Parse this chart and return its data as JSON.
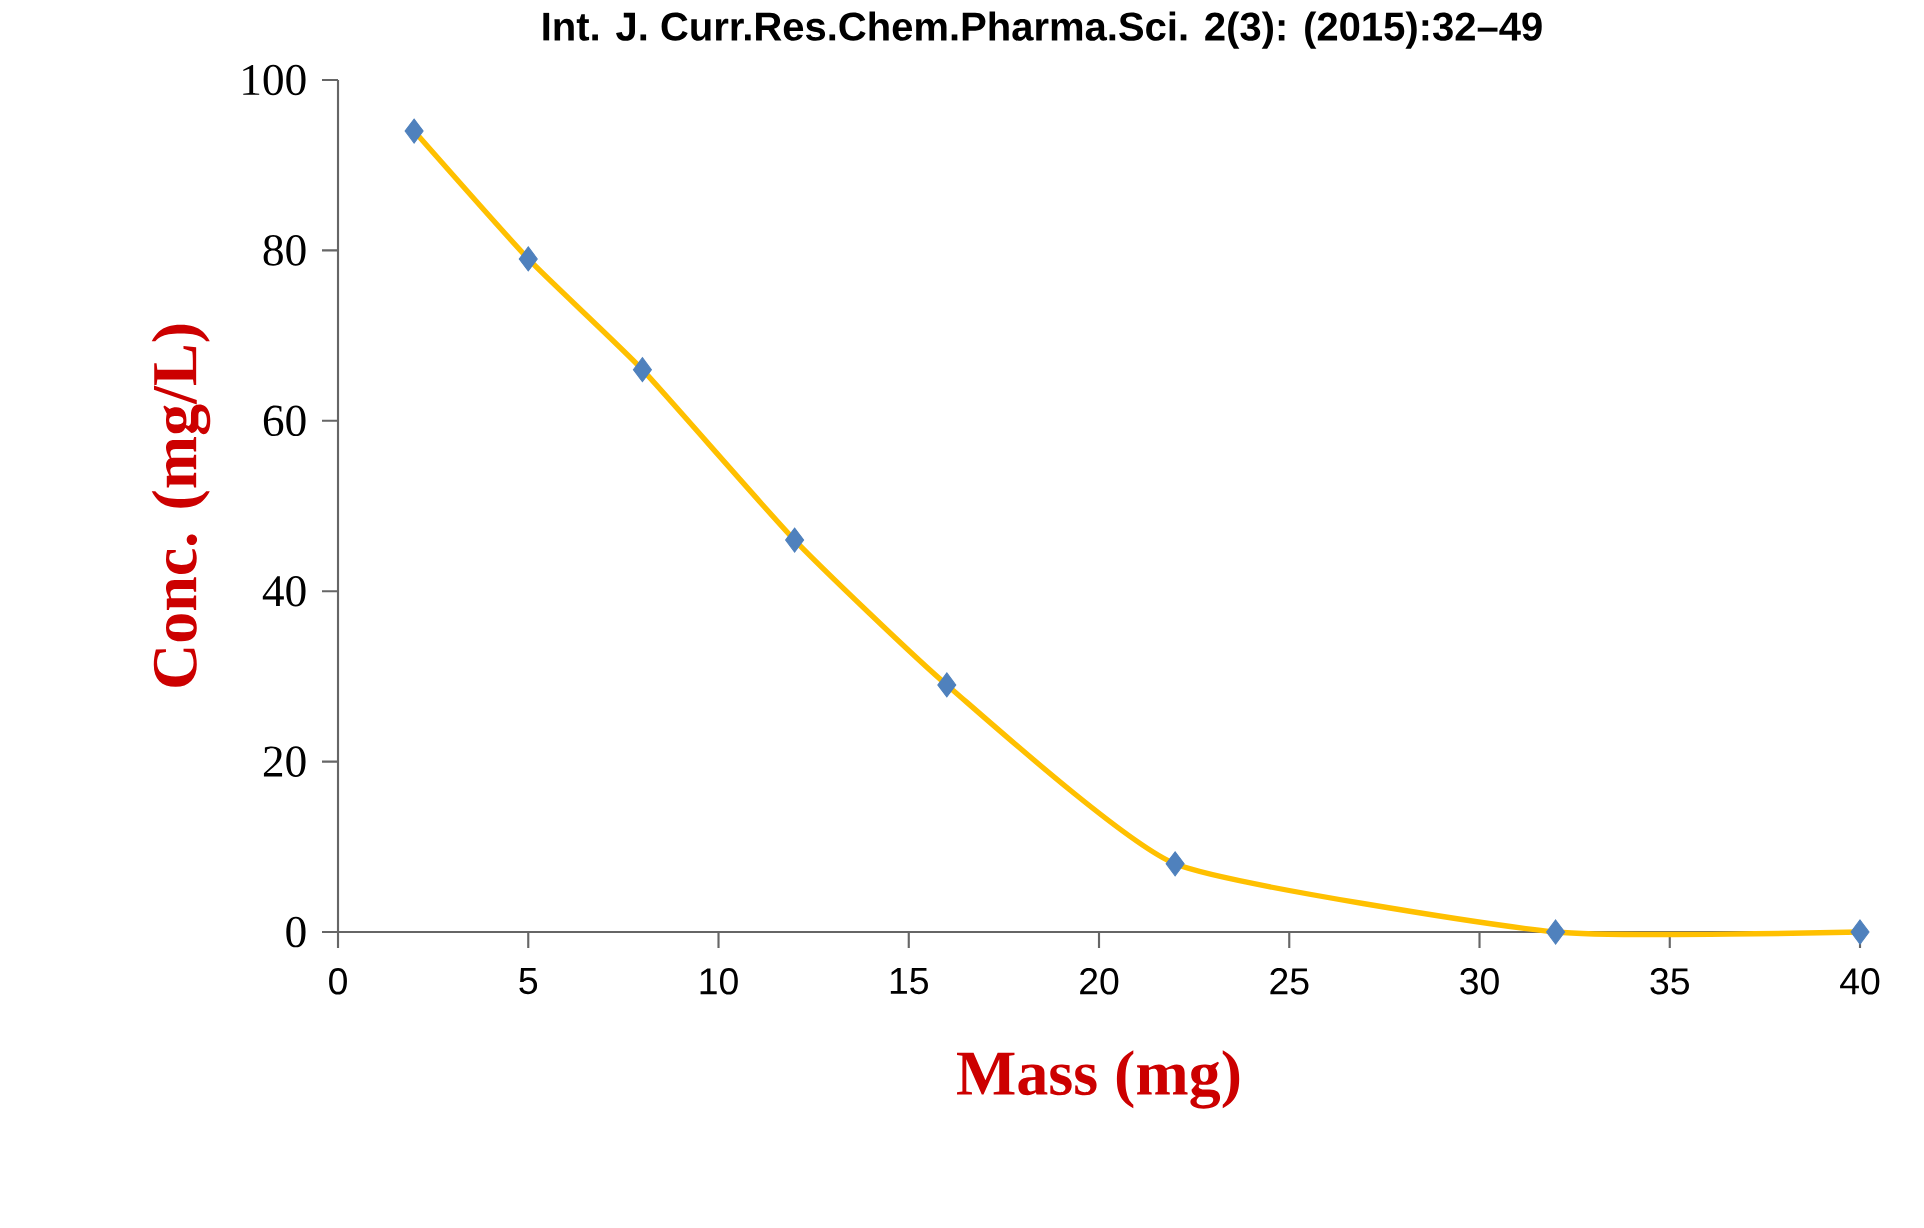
{
  "chart_data": {
    "type": "line",
    "annotations": [
      "Int. J. Curr.Res.Chem.Pharma.Sci. 2(3): (2015):32–49"
    ],
    "xlabel": "Mass (mg)",
    "ylabel": "Conc. (mg/L)",
    "x": [
      2,
      5,
      8,
      12,
      16,
      22,
      32,
      40
    ],
    "series": [
      {
        "color": "#ffc000",
        "values": [
          94,
          79,
          66,
          46,
          29,
          8,
          0,
          0
        ]
      }
    ],
    "marker": "diamond",
    "xlim": [
      0,
      40
    ],
    "xticks": [
      0,
      5,
      10,
      15,
      20,
      25,
      30,
      35,
      40
    ],
    "ylim": [
      0,
      100
    ],
    "yticks": [
      0,
      20,
      40,
      60,
      80,
      100
    ],
    "grid": false
  }
}
